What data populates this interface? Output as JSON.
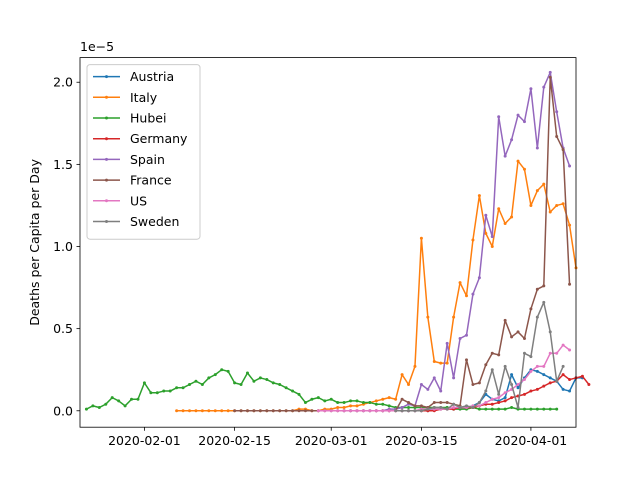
{
  "chart_data": {
    "type": "line",
    "title": "",
    "xlabel": "",
    "ylabel": "Deaths per Capita per Day",
    "y_offset_text": "1e−5",
    "y_scale_factor": 1e-05,
    "xlim": [
      "2020-01-22",
      "2020-04-08"
    ],
    "ylim": [
      -0.1,
      2.15
    ],
    "x_ticks": [
      "2020-02-01",
      "2020-02-15",
      "2020-03-01",
      "2020-03-15",
      "2020-04-01"
    ],
    "y_ticks": [
      0.0,
      0.5,
      1.0,
      1.5,
      2.0
    ],
    "y_tick_labels": [
      "0.0",
      "0.5",
      "1.0",
      "1.5",
      "2.0"
    ],
    "legend_position": "upper-left",
    "grid": false,
    "series": [
      {
        "name": "Austria",
        "color": "#1f77b4",
        "start": "2020-03-12",
        "values": [
          0.0,
          0.0,
          0.0,
          0.0,
          0.0,
          0.01,
          0.01,
          0.02,
          0.01,
          0.02,
          0.02,
          0.03,
          0.05,
          0.1,
          0.07,
          0.06,
          0.08,
          0.22,
          0.14,
          0.2,
          0.25,
          0.24,
          0.22,
          0.2,
          0.18,
          0.13,
          0.12,
          0.2,
          0.2
        ]
      },
      {
        "name": "Italy",
        "color": "#ff7f0e",
        "start": "2020-02-06",
        "values": [
          0.0,
          0.0,
          0.0,
          0.0,
          0.0,
          0.0,
          0.0,
          0.0,
          0.0,
          0.0,
          0.0,
          0.0,
          0.0,
          0.0,
          0.0,
          0.0,
          0.0,
          0.0,
          0.0,
          0.01,
          0.01,
          0.0,
          0.0,
          0.01,
          0.01,
          0.02,
          0.02,
          0.03,
          0.03,
          0.04,
          0.05,
          0.06,
          0.07,
          0.08,
          0.07,
          0.22,
          0.16,
          0.27,
          1.05,
          0.57,
          0.3,
          0.29,
          0.29,
          0.57,
          0.78,
          0.7,
          1.04,
          1.31,
          1.08,
          1.0,
          1.23,
          1.14,
          1.18,
          1.52,
          1.47,
          1.25,
          1.34,
          1.38,
          1.21,
          1.25,
          1.26,
          1.13,
          0.87
        ]
      },
      {
        "name": "Hubei",
        "color": "#2ca02c",
        "start": "2020-01-23",
        "values": [
          0.01,
          0.03,
          0.02,
          0.04,
          0.08,
          0.06,
          0.03,
          0.07,
          0.07,
          0.17,
          0.11,
          0.11,
          0.12,
          0.12,
          0.14,
          0.14,
          0.16,
          0.18,
          0.16,
          0.2,
          0.22,
          0.25,
          0.24,
          0.17,
          0.16,
          0.23,
          0.18,
          0.2,
          0.19,
          0.17,
          0.16,
          0.14,
          0.12,
          0.1,
          0.05,
          0.07,
          0.08,
          0.06,
          0.07,
          0.05,
          0.05,
          0.06,
          0.06,
          0.05,
          0.05,
          0.04,
          0.04,
          0.03,
          0.02,
          0.02,
          0.02,
          0.02,
          0.02,
          0.02,
          0.02,
          0.02,
          0.02,
          0.01,
          0.01,
          0.01,
          0.02,
          0.01,
          0.01,
          0.01,
          0.01,
          0.01,
          0.02,
          0.01,
          0.01,
          0.01,
          0.01,
          0.01,
          0.01,
          0.01
        ]
      },
      {
        "name": "Germany",
        "color": "#d62728",
        "start": "2020-03-08",
        "values": [
          0.0,
          0.0,
          0.0,
          0.0,
          0.0,
          0.0,
          0.0,
          0.0,
          0.0,
          0.0,
          0.01,
          0.01,
          0.01,
          0.02,
          0.02,
          0.02,
          0.03,
          0.04,
          0.04,
          0.05,
          0.06,
          0.08,
          0.09,
          0.1,
          0.12,
          0.13,
          0.15,
          0.17,
          0.18,
          0.22,
          0.19,
          0.2,
          0.21,
          0.16
        ]
      },
      {
        "name": "Spain",
        "color": "#9467bd",
        "start": "2020-03-03",
        "values": [
          0.0,
          0.0,
          0.0,
          0.0,
          0.0,
          0.0,
          0.0,
          0.01,
          0.01,
          0.02,
          0.04,
          0.03,
          0.16,
          0.13,
          0.2,
          0.12,
          0.41,
          0.2,
          0.44,
          0.46,
          0.71,
          0.81,
          1.19,
          1.06,
          1.79,
          1.55,
          1.65,
          1.8,
          1.76,
          1.96,
          1.6,
          1.97,
          2.06,
          1.82,
          1.6,
          1.49
        ]
      },
      {
        "name": "France",
        "color": "#8c564b",
        "start": "2020-02-15",
        "values": [
          0.0,
          0.0,
          0.0,
          0.0,
          0.0,
          0.0,
          0.0,
          0.0,
          0.0,
          0.0,
          0.0,
          0.0,
          0.0,
          0.0,
          0.0,
          0.0,
          0.0,
          0.0,
          0.0,
          0.0,
          0.0,
          0.0,
          0.0,
          0.0,
          0.0,
          0.0,
          0.07,
          0.05,
          0.03,
          0.03,
          0.02,
          0.05,
          0.05,
          0.05,
          0.04,
          0.03,
          0.31,
          0.16,
          0.17,
          0.28,
          0.35,
          0.34,
          0.55,
          0.45,
          0.48,
          0.44,
          0.62,
          0.74,
          0.76,
          2.03,
          1.67,
          1.59,
          0.77
        ]
      },
      {
        "name": "US",
        "color": "#e377c2",
        "start": "2020-02-28",
        "values": [
          0.0,
          0.0,
          0.0,
          0.0,
          0.0,
          0.0,
          0.0,
          0.0,
          0.0,
          0.0,
          0.0,
          0.0,
          0.0,
          0.0,
          0.0,
          0.0,
          0.01,
          0.01,
          0.01,
          0.01,
          0.01,
          0.02,
          0.02,
          0.02,
          0.03,
          0.03,
          0.05,
          0.07,
          0.08,
          0.11,
          0.13,
          0.16,
          0.19,
          0.24,
          0.27,
          0.27,
          0.35,
          0.35,
          0.4,
          0.37
        ]
      },
      {
        "name": "Sweden",
        "color": "#7f7f7f",
        "start": "2020-03-11",
        "values": [
          0.0,
          0.0,
          0.0,
          0.0,
          0.0,
          0.01,
          0.02,
          0.02,
          0.01,
          0.04,
          0.02,
          0.03,
          0.02,
          0.05,
          0.12,
          0.25,
          0.1,
          0.27,
          0.16,
          0.02,
          0.35,
          0.33,
          0.57,
          0.66,
          0.48,
          0.18,
          0.27
        ]
      }
    ]
  }
}
